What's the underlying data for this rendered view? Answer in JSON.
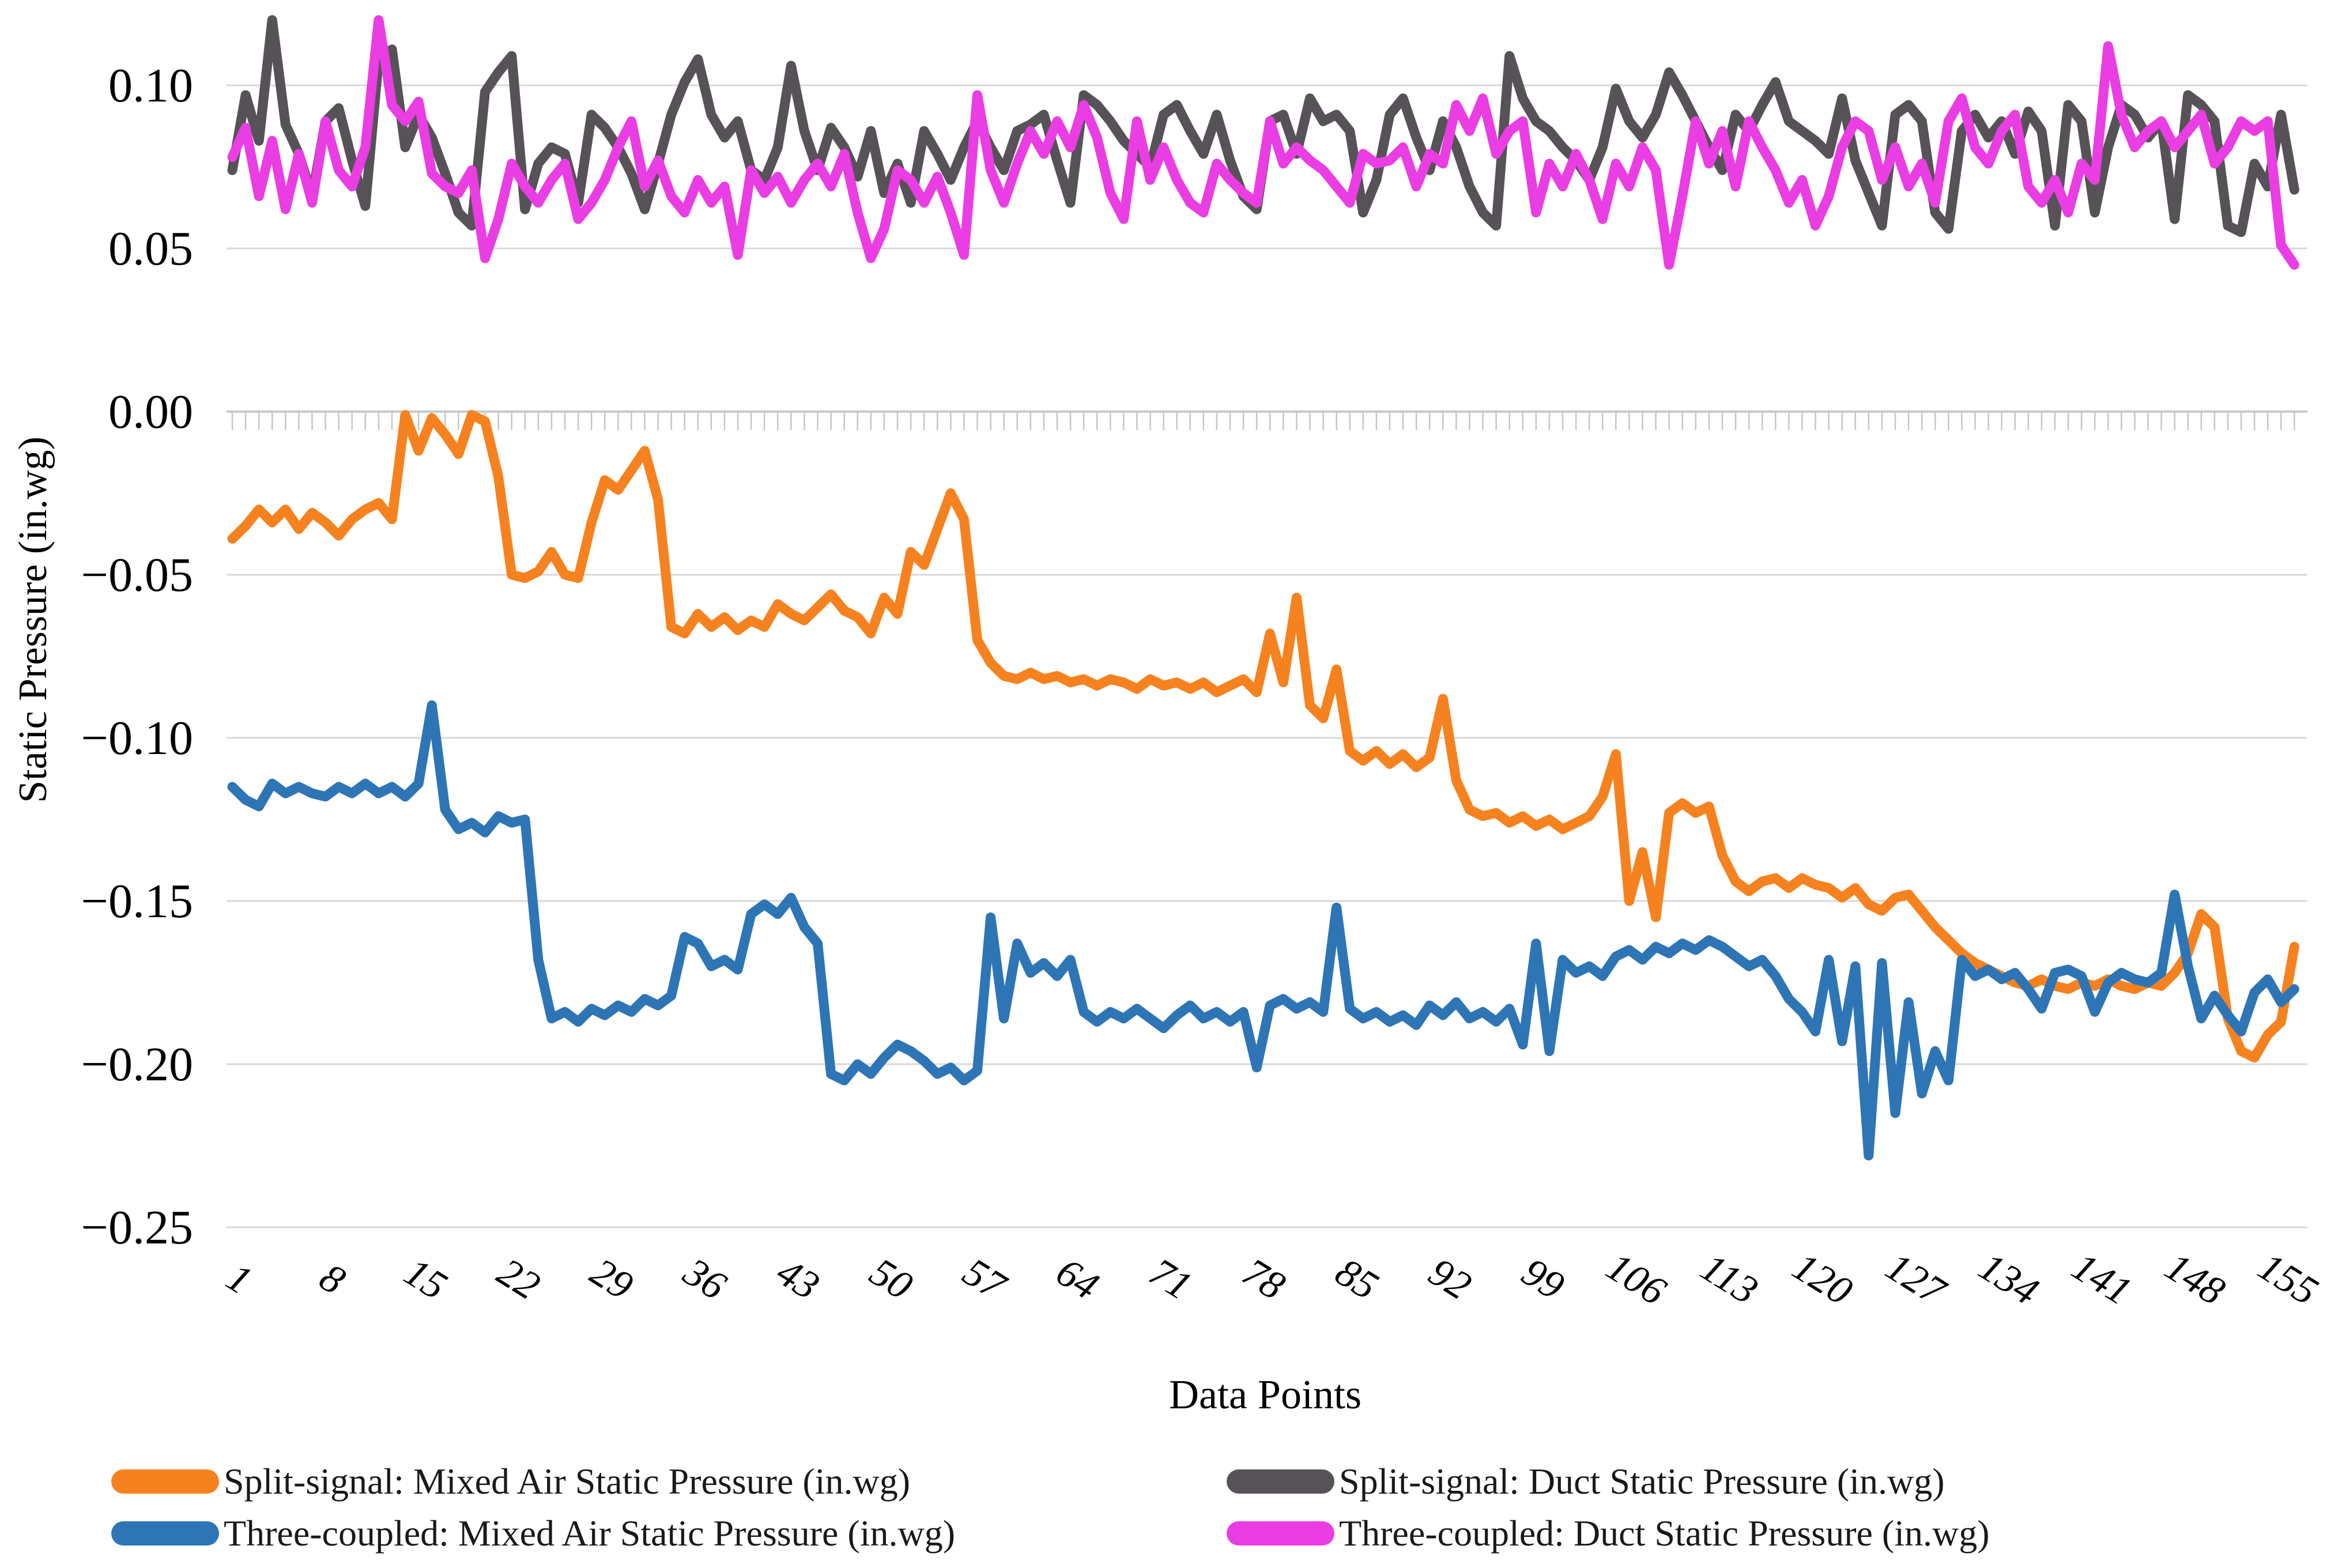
{
  "chart_data": {
    "type": "line",
    "title": "",
    "xlabel": "Data Points",
    "ylabel": "Static Pressure (in.wg)",
    "n_points": 156,
    "x_range": [
      1,
      156
    ],
    "x_ticks": [
      1,
      8,
      15,
      22,
      29,
      36,
      43,
      50,
      57,
      64,
      71,
      78,
      85,
      92,
      99,
      106,
      113,
      120,
      127,
      134,
      141,
      148,
      155
    ],
    "ylim": [
      -0.25,
      0.127
    ],
    "y_ticks": [
      0.1,
      0.05,
      0.0,
      -0.05,
      -0.1,
      -0.15,
      -0.2,
      -0.25
    ],
    "y_tick_labels": [
      "0.10",
      "0.05",
      "0.00",
      "−0.05",
      "−0.10",
      "−0.15",
      "−0.20",
      "−0.25"
    ],
    "grid": true,
    "legend_position": "bottom",
    "series": [
      {
        "name": "Split-signal: Mixed Air Static Pressure (in.wg)",
        "color": "#F6821F",
        "values": [
          -0.039,
          -0.035,
          -0.03,
          -0.034,
          -0.03,
          -0.036,
          -0.031,
          -0.034,
          -0.038,
          -0.033,
          -0.03,
          -0.028,
          -0.033,
          -0.001,
          -0.012,
          -0.002,
          -0.007,
          -0.013,
          -0.001,
          -0.003,
          -0.02,
          -0.05,
          -0.051,
          -0.049,
          -0.043,
          -0.05,
          -0.051,
          -0.034,
          -0.021,
          -0.024,
          -0.018,
          -0.012,
          -0.027,
          -0.066,
          -0.068,
          -0.062,
          -0.066,
          -0.063,
          -0.067,
          -0.064,
          -0.066,
          -0.059,
          -0.062,
          -0.064,
          -0.06,
          -0.056,
          -0.061,
          -0.063,
          -0.068,
          -0.057,
          -0.062,
          -0.043,
          -0.047,
          -0.036,
          -0.025,
          -0.033,
          -0.07,
          -0.077,
          -0.081,
          -0.082,
          -0.08,
          -0.082,
          -0.081,
          -0.083,
          -0.082,
          -0.084,
          -0.082,
          -0.083,
          -0.085,
          -0.082,
          -0.084,
          -0.083,
          -0.085,
          -0.083,
          -0.086,
          -0.084,
          -0.082,
          -0.086,
          -0.068,
          -0.083,
          -0.057,
          -0.09,
          -0.094,
          -0.079,
          -0.104,
          -0.107,
          -0.104,
          -0.108,
          -0.105,
          -0.109,
          -0.106,
          -0.088,
          -0.113,
          -0.122,
          -0.124,
          -0.123,
          -0.126,
          -0.124,
          -0.127,
          -0.125,
          -0.128,
          -0.126,
          -0.124,
          -0.118,
          -0.105,
          -0.15,
          -0.135,
          -0.155,
          -0.123,
          -0.12,
          -0.123,
          -0.121,
          -0.136,
          -0.144,
          -0.147,
          -0.144,
          -0.143,
          -0.146,
          -0.143,
          -0.145,
          -0.146,
          -0.149,
          -0.146,
          -0.151,
          -0.153,
          -0.149,
          -0.148,
          -0.153,
          -0.158,
          -0.162,
          -0.166,
          -0.169,
          -0.171,
          -0.173,
          -0.175,
          -0.176,
          -0.174,
          -0.176,
          -0.177,
          -0.175,
          -0.176,
          -0.174,
          -0.176,
          -0.177,
          -0.175,
          -0.176,
          -0.172,
          -0.166,
          -0.154,
          -0.158,
          -0.186,
          -0.196,
          -0.198,
          -0.191,
          -0.187,
          -0.164
        ]
      },
      {
        "name": "Split-signal: Duct Static Pressure (in.wg)",
        "color": "#575257",
        "values": [
          0.074,
          0.097,
          0.083,
          0.12,
          0.088,
          0.079,
          0.066,
          0.089,
          0.093,
          0.077,
          0.063,
          0.108,
          0.111,
          0.081,
          0.091,
          0.084,
          0.073,
          0.061,
          0.057,
          0.098,
          0.104,
          0.109,
          0.062,
          0.076,
          0.081,
          0.079,
          0.064,
          0.091,
          0.087,
          0.081,
          0.073,
          0.062,
          0.076,
          0.091,
          0.101,
          0.108,
          0.091,
          0.084,
          0.089,
          0.074,
          0.071,
          0.081,
          0.106,
          0.086,
          0.074,
          0.087,
          0.081,
          0.072,
          0.086,
          0.067,
          0.076,
          0.064,
          0.086,
          0.079,
          0.071,
          0.081,
          0.089,
          0.081,
          0.074,
          0.086,
          0.088,
          0.091,
          0.077,
          0.064,
          0.097,
          0.094,
          0.089,
          0.083,
          0.079,
          0.075,
          0.091,
          0.094,
          0.086,
          0.079,
          0.091,
          0.077,
          0.066,
          0.062,
          0.089,
          0.091,
          0.079,
          0.096,
          0.089,
          0.091,
          0.086,
          0.061,
          0.071,
          0.091,
          0.096,
          0.084,
          0.074,
          0.089,
          0.081,
          0.069,
          0.061,
          0.057,
          0.109,
          0.096,
          0.089,
          0.086,
          0.081,
          0.077,
          0.071,
          0.081,
          0.099,
          0.089,
          0.084,
          0.091,
          0.104,
          0.097,
          0.089,
          0.081,
          0.074,
          0.091,
          0.086,
          0.094,
          0.101,
          0.089,
          0.086,
          0.083,
          0.079,
          0.096,
          0.077,
          0.067,
          0.057,
          0.091,
          0.094,
          0.089,
          0.061,
          0.056,
          0.086,
          0.091,
          0.084,
          0.089,
          0.079,
          0.092,
          0.086,
          0.057,
          0.094,
          0.089,
          0.061,
          0.081,
          0.094,
          0.091,
          0.084,
          0.089,
          0.059,
          0.097,
          0.094,
          0.089,
          0.057,
          0.055,
          0.076,
          0.069,
          0.091,
          0.068
        ]
      },
      {
        "name": "Three-coupled: Mixed Air Static Pressure (in.wg)",
        "color": "#2E75B6",
        "values": [
          -0.115,
          -0.119,
          -0.121,
          -0.114,
          -0.117,
          -0.115,
          -0.117,
          -0.118,
          -0.115,
          -0.117,
          -0.114,
          -0.117,
          -0.115,
          -0.118,
          -0.114,
          -0.09,
          -0.122,
          -0.128,
          -0.126,
          -0.129,
          -0.124,
          -0.126,
          -0.125,
          -0.168,
          -0.186,
          -0.184,
          -0.187,
          -0.183,
          -0.185,
          -0.182,
          -0.184,
          -0.18,
          -0.182,
          -0.179,
          -0.161,
          -0.163,
          -0.17,
          -0.168,
          -0.171,
          -0.154,
          -0.151,
          -0.154,
          -0.149,
          -0.158,
          -0.163,
          -0.203,
          -0.205,
          -0.2,
          -0.203,
          -0.198,
          -0.194,
          -0.196,
          -0.199,
          -0.203,
          -0.201,
          -0.205,
          -0.202,
          -0.155,
          -0.186,
          -0.163,
          -0.172,
          -0.169,
          -0.173,
          -0.168,
          -0.184,
          -0.187,
          -0.184,
          -0.186,
          -0.183,
          -0.186,
          -0.189,
          -0.185,
          -0.182,
          -0.186,
          -0.184,
          -0.187,
          -0.184,
          -0.201,
          -0.182,
          -0.18,
          -0.183,
          -0.181,
          -0.184,
          -0.152,
          -0.183,
          -0.186,
          -0.184,
          -0.187,
          -0.185,
          -0.188,
          -0.182,
          -0.185,
          -0.181,
          -0.186,
          -0.184,
          -0.187,
          -0.183,
          -0.194,
          -0.163,
          -0.196,
          -0.168,
          -0.172,
          -0.17,
          -0.173,
          -0.167,
          -0.165,
          -0.168,
          -0.164,
          -0.166,
          -0.163,
          -0.165,
          -0.162,
          -0.164,
          -0.167,
          -0.17,
          -0.168,
          -0.173,
          -0.18,
          -0.184,
          -0.19,
          -0.168,
          -0.193,
          -0.17,
          -0.228,
          -0.169,
          -0.215,
          -0.181,
          -0.209,
          -0.196,
          -0.205,
          -0.168,
          -0.173,
          -0.171,
          -0.174,
          -0.172,
          -0.177,
          -0.183,
          -0.172,
          -0.171,
          -0.173,
          -0.184,
          -0.175,
          -0.172,
          -0.174,
          -0.175,
          -0.172,
          -0.148,
          -0.17,
          -0.186,
          -0.179,
          -0.185,
          -0.19,
          -0.178,
          -0.174,
          -0.181,
          -0.177
        ]
      },
      {
        "name": "Three-coupled: Duct Static Pressure (in.wg)",
        "color": "#EA3DE4",
        "values": [
          0.078,
          0.087,
          0.066,
          0.083,
          0.062,
          0.079,
          0.064,
          0.089,
          0.074,
          0.069,
          0.081,
          0.12,
          0.094,
          0.089,
          0.095,
          0.073,
          0.069,
          0.067,
          0.074,
          0.047,
          0.059,
          0.076,
          0.069,
          0.064,
          0.071,
          0.076,
          0.059,
          0.064,
          0.071,
          0.081,
          0.089,
          0.069,
          0.077,
          0.066,
          0.061,
          0.071,
          0.064,
          0.069,
          0.048,
          0.074,
          0.067,
          0.072,
          0.064,
          0.071,
          0.076,
          0.069,
          0.079,
          0.061,
          0.047,
          0.056,
          0.074,
          0.071,
          0.064,
          0.072,
          0.061,
          0.048,
          0.097,
          0.074,
          0.064,
          0.076,
          0.086,
          0.079,
          0.089,
          0.081,
          0.094,
          0.084,
          0.067,
          0.059,
          0.089,
          0.071,
          0.081,
          0.071,
          0.064,
          0.061,
          0.076,
          0.071,
          0.067,
          0.064,
          0.089,
          0.076,
          0.081,
          0.077,
          0.074,
          0.069,
          0.064,
          0.079,
          0.076,
          0.077,
          0.081,
          0.069,
          0.079,
          0.076,
          0.094,
          0.086,
          0.096,
          0.079,
          0.086,
          0.089,
          0.061,
          0.076,
          0.069,
          0.079,
          0.071,
          0.059,
          0.076,
          0.069,
          0.081,
          0.074,
          0.045,
          0.066,
          0.089,
          0.076,
          0.086,
          0.069,
          0.089,
          0.081,
          0.074,
          0.064,
          0.071,
          0.057,
          0.066,
          0.081,
          0.089,
          0.086,
          0.071,
          0.081,
          0.069,
          0.076,
          0.064,
          0.089,
          0.096,
          0.081,
          0.076,
          0.086,
          0.091,
          0.069,
          0.064,
          0.071,
          0.061,
          0.076,
          0.071,
          0.112,
          0.091,
          0.081,
          0.086,
          0.089,
          0.081,
          0.086,
          0.091,
          0.076,
          0.081,
          0.089,
          0.086,
          0.089,
          0.051,
          0.045
        ]
      }
    ]
  },
  "legend": {
    "items": [
      {
        "label": "Split-signal: Mixed Air Static Pressure (in.wg)",
        "color": "#F6821F",
        "icon": "line-swatch"
      },
      {
        "label": "Split-signal: Duct Static Pressure (in.wg)",
        "color": "#575257",
        "icon": "line-swatch"
      },
      {
        "label": "Three-coupled: Mixed Air Static Pressure (in.wg)",
        "color": "#2E75B6",
        "icon": "line-swatch"
      },
      {
        "label": "Three-coupled: Duct Static Pressure (in.wg)",
        "color": "#EA3DE4",
        "icon": "line-swatch"
      }
    ]
  },
  "colors": {
    "gridline": "#D9D9D9",
    "axis_line": "#C9C9C9",
    "minor_tick": "#C6C6C6",
    "tick_text": "#000000"
  }
}
